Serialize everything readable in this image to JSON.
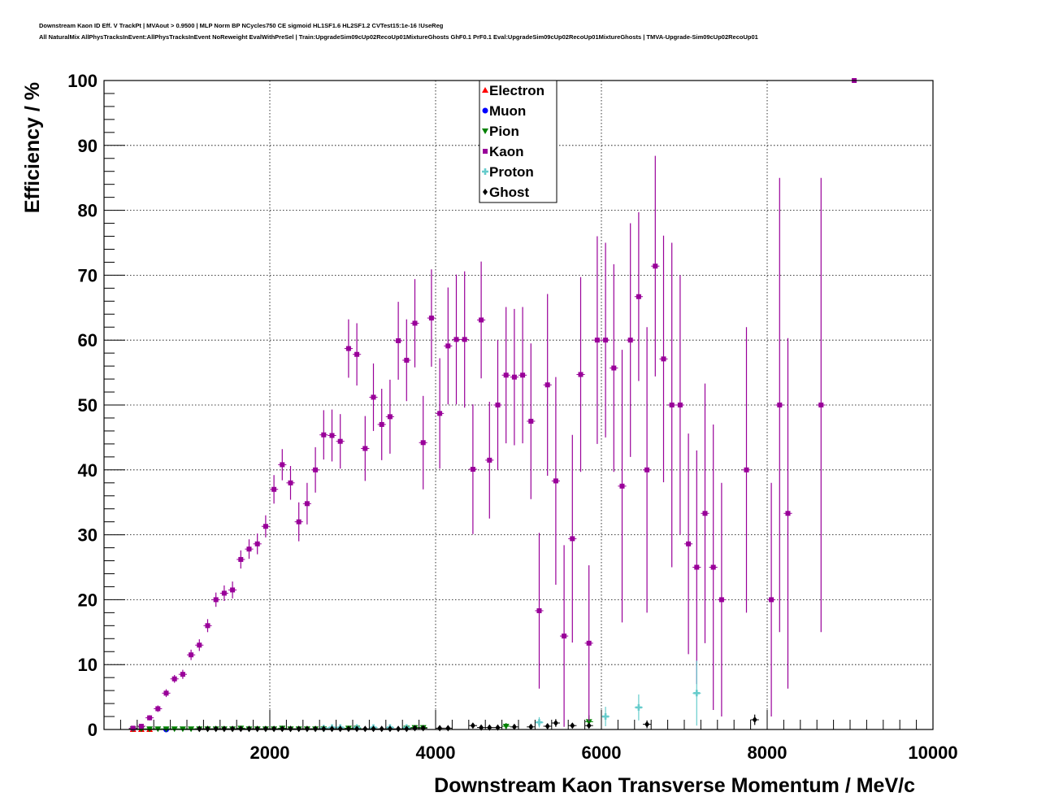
{
  "header": {
    "title_line_1": "Downstream Kaon ID Eff. V TrackPt | MVAout > 0.9500 | MLP Norm BP NCycles750 CE sigmoid HL1SF1.6 HL2SF1.2 CVTest15:1e-16 !UseReg",
    "title_line_2": "All NaturalMix AllPhysTracksInEvent:AllPhysTracksInEvent NoReweight EvalWithPreSel | Train:UpgradeSim09cUp02RecoUp01MixtureGhosts GhF0.1 PrF0.1 Eval:UpgradeSim09cUp02RecoUp01MixtureGhosts | TMVA-Upgrade-Sim09cUp02RecoUp01"
  },
  "chart_data": {
    "type": "scatter",
    "xlabel": "Downstream Kaon Transverse Momentum / MeV/c",
    "ylabel": "Efficiency / %",
    "xlim": [
      0,
      10000
    ],
    "ylim": [
      0,
      100
    ],
    "x_ticks": [
      2000,
      4000,
      6000,
      8000,
      10000
    ],
    "y_ticks": [
      0,
      10,
      20,
      30,
      40,
      50,
      60,
      70,
      80,
      90,
      100
    ],
    "grid": true,
    "legend_position": "top-center",
    "bin_half_width": 50,
    "series": [
      {
        "name": "Electron",
        "color": "#ff0000",
        "marker": "triangle-up",
        "points": [
          [
            350,
            0,
            0
          ],
          [
            450,
            0,
            0
          ],
          [
            550,
            0,
            0
          ]
        ]
      },
      {
        "name": "Muon",
        "color": "#0000ff",
        "marker": "circle",
        "points": [
          [
            750,
            0,
            0
          ]
        ]
      },
      {
        "name": "Pion",
        "color": "#008000",
        "marker": "triangle-down",
        "points": [
          [
            350,
            0.1,
            0.1
          ],
          [
            450,
            0.1,
            0.1
          ],
          [
            550,
            0.1,
            0.1
          ],
          [
            650,
            0.1,
            0.1
          ],
          [
            750,
            0.1,
            0.1
          ],
          [
            850,
            0.1,
            0.1
          ],
          [
            950,
            0.1,
            0.1
          ],
          [
            1050,
            0.1,
            0.1
          ],
          [
            1150,
            0.1,
            0.1
          ],
          [
            1250,
            0.1,
            0.1
          ],
          [
            1350,
            0.1,
            0.1
          ],
          [
            1450,
            0.1,
            0.1
          ],
          [
            1550,
            0.1,
            0.1
          ],
          [
            1650,
            0.2,
            0.1
          ],
          [
            1750,
            0.1,
            0.1
          ],
          [
            1850,
            0.1,
            0.1
          ],
          [
            1950,
            0.1,
            0.1
          ],
          [
            2050,
            0.1,
            0.1
          ],
          [
            2150,
            0.2,
            0.1
          ],
          [
            2250,
            0.1,
            0.1
          ],
          [
            2350,
            0.1,
            0.1
          ],
          [
            2450,
            0.1,
            0.1
          ],
          [
            2550,
            0.1,
            0.1
          ],
          [
            2650,
            0.1,
            0.1
          ],
          [
            2950,
            0.2,
            0.1
          ],
          [
            3050,
            0.2,
            0.1
          ],
          [
            3650,
            0.2,
            0.2
          ],
          [
            3750,
            0.3,
            0.2
          ],
          [
            3850,
            0.3,
            0.3
          ],
          [
            4850,
            0.5,
            0.5
          ],
          [
            5850,
            1.2,
            1.0
          ]
        ]
      },
      {
        "name": "Kaon",
        "color": "#990099",
        "marker": "square",
        "points": [
          [
            350,
            0.2,
            0.2
          ],
          [
            450,
            0.5,
            0.3
          ],
          [
            550,
            1.8,
            0.4
          ],
          [
            650,
            3.2,
            0.5
          ],
          [
            750,
            5.6,
            0.6
          ],
          [
            850,
            7.8,
            0.6
          ],
          [
            950,
            8.5,
            0.7
          ],
          [
            1050,
            11.5,
            0.8
          ],
          [
            1150,
            13.0,
            0.9
          ],
          [
            1250,
            16.0,
            1.0
          ],
          [
            1350,
            20.0,
            1.1
          ],
          [
            1450,
            21.0,
            1.2
          ],
          [
            1550,
            21.5,
            1.3
          ],
          [
            1650,
            26.2,
            1.4
          ],
          [
            1750,
            27.8,
            1.5
          ],
          [
            1850,
            28.6,
            1.6
          ],
          [
            1950,
            31.3,
            1.7
          ],
          [
            2050,
            37.0,
            2.2
          ],
          [
            2150,
            40.8,
            2.4
          ],
          [
            2250,
            38.0,
            2.6
          ],
          [
            2350,
            32.0,
            3.0
          ],
          [
            2450,
            34.8,
            3.2
          ],
          [
            2550,
            40.0,
            3.5
          ],
          [
            2650,
            45.4,
            3.8
          ],
          [
            2750,
            45.3,
            4.0
          ],
          [
            2850,
            44.4,
            4.2
          ],
          [
            2950,
            58.7,
            4.5
          ],
          [
            3050,
            57.8,
            4.8
          ],
          [
            3150,
            43.3,
            5.0
          ],
          [
            3250,
            51.2,
            5.2
          ],
          [
            3350,
            47.0,
            5.5
          ],
          [
            3450,
            48.2,
            5.7
          ],
          [
            3550,
            59.9,
            6.0
          ],
          [
            3650,
            56.9,
            6.3
          ],
          [
            3750,
            62.6,
            6.8
          ],
          [
            3850,
            44.2,
            7.2
          ],
          [
            3950,
            63.4,
            7.5
          ],
          [
            4050,
            48.7,
            8.5
          ],
          [
            4150,
            59.1,
            9.0
          ],
          [
            4250,
            60.1,
            10.0
          ],
          [
            4350,
            60.1,
            10.5
          ],
          [
            4450,
            40.1,
            10.0
          ],
          [
            4550,
            63.1,
            9.0
          ],
          [
            4650,
            41.5,
            9.0
          ],
          [
            4750,
            50.0,
            10.0
          ],
          [
            4850,
            54.6,
            10.5
          ],
          [
            4950,
            54.3,
            10.5
          ],
          [
            5050,
            54.6,
            10.5
          ],
          [
            5150,
            47.5,
            12.0
          ],
          [
            5250,
            18.3,
            12.0
          ],
          [
            5350,
            53.1,
            14.0
          ],
          [
            5450,
            38.3,
            16.0
          ],
          [
            5550,
            14.4,
            14.0
          ],
          [
            5650,
            29.4,
            16.0
          ],
          [
            5750,
            54.7,
            15.0
          ],
          [
            5850,
            13.3,
            12.0
          ],
          [
            5950,
            60.0,
            16.0
          ],
          [
            6050,
            60.0,
            15.0
          ],
          [
            6150,
            55.7,
            16.0
          ],
          [
            6250,
            37.5,
            21.0
          ],
          [
            6350,
            60.0,
            18.0
          ],
          [
            6450,
            66.7,
            13.0
          ],
          [
            6550,
            40.0,
            22.0
          ],
          [
            6650,
            71.4,
            17.0
          ],
          [
            6750,
            57.1,
            19.0
          ],
          [
            6850,
            50.0,
            25.0
          ],
          [
            6950,
            50.0,
            20.0
          ],
          [
            7050,
            28.6,
            17.0
          ],
          [
            7150,
            25.0,
            18.0
          ],
          [
            7250,
            33.3,
            20.0
          ],
          [
            7350,
            25.0,
            22.0
          ],
          [
            7450,
            20.0,
            18.0
          ],
          [
            7750,
            40.0,
            22.0
          ],
          [
            8050,
            20.0,
            18.0
          ],
          [
            8150,
            50.0,
            35.0
          ],
          [
            8250,
            33.3,
            27.0
          ],
          [
            8650,
            50.0,
            35.0
          ],
          [
            9050,
            100.0,
            0.0
          ]
        ]
      },
      {
        "name": "Proton",
        "color": "#66cccc",
        "marker": "cross",
        "points": [
          [
            2650,
            0.2,
            0.1
          ],
          [
            2750,
            0.3,
            0.2
          ],
          [
            2850,
            0.3,
            0.2
          ],
          [
            3050,
            0.3,
            0.2
          ],
          [
            3250,
            0.3,
            0.2
          ],
          [
            3450,
            0.3,
            0.2
          ],
          [
            3650,
            0.3,
            0.2
          ],
          [
            5250,
            1.1,
            0.8
          ],
          [
            6050,
            2.0,
            1.5
          ],
          [
            6450,
            3.4,
            2.0
          ],
          [
            7150,
            5.6,
            5.0
          ]
        ]
      },
      {
        "name": "Ghost",
        "color": "#000000",
        "marker": "diamond",
        "points": [
          [
            1150,
            0.1,
            0.1
          ],
          [
            1250,
            0.1,
            0.1
          ],
          [
            1350,
            0.1,
            0.1
          ],
          [
            1450,
            0.1,
            0.1
          ],
          [
            1550,
            0.1,
            0.1
          ],
          [
            1650,
            0.1,
            0.1
          ],
          [
            1750,
            0.1,
            0.1
          ],
          [
            1850,
            0.1,
            0.1
          ],
          [
            1950,
            0.1,
            0.1
          ],
          [
            2050,
            0.1,
            0.1
          ],
          [
            2150,
            0.1,
            0.1
          ],
          [
            2250,
            0.1,
            0.1
          ],
          [
            2350,
            0.1,
            0.1
          ],
          [
            2450,
            0.1,
            0.1
          ],
          [
            2550,
            0.1,
            0.1
          ],
          [
            2650,
            0.1,
            0.1
          ],
          [
            2750,
            0.1,
            0.1
          ],
          [
            2850,
            0.1,
            0.1
          ],
          [
            2950,
            0.1,
            0.1
          ],
          [
            3050,
            0.1,
            0.1
          ],
          [
            3150,
            0.1,
            0.1
          ],
          [
            3250,
            0.1,
            0.1
          ],
          [
            3350,
            0.1,
            0.1
          ],
          [
            3450,
            0.1,
            0.1
          ],
          [
            3550,
            0.1,
            0.1
          ],
          [
            3650,
            0.1,
            0.1
          ],
          [
            3750,
            0.2,
            0.1
          ],
          [
            3850,
            0.2,
            0.1
          ],
          [
            4050,
            0.2,
            0.1
          ],
          [
            4150,
            0.2,
            0.1
          ],
          [
            4450,
            0.6,
            0.4
          ],
          [
            4550,
            0.3,
            0.2
          ],
          [
            4650,
            0.3,
            0.2
          ],
          [
            4750,
            0.3,
            0.2
          ],
          [
            4950,
            0.4,
            0.3
          ],
          [
            5150,
            0.4,
            0.3
          ],
          [
            5350,
            0.5,
            0.4
          ],
          [
            5450,
            1.0,
            0.6
          ],
          [
            5650,
            0.6,
            0.4
          ],
          [
            5850,
            0.6,
            0.4
          ],
          [
            6550,
            0.8,
            0.6
          ],
          [
            7850,
            1.5,
            0.8
          ]
        ]
      }
    ]
  }
}
